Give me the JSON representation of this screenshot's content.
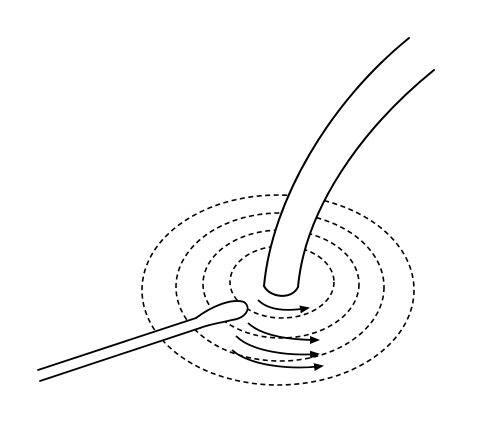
{
  "figure": {
    "subject": "tube-insertion-site-cleaning",
    "colors": {
      "stroke": "#000000",
      "background": "#ffffff"
    },
    "elements": {
      "tube": "drain-tube",
      "swab": "cotton-swab",
      "rings": "concentric-cleaning-rings",
      "arrows": "circular-motion-arrows"
    },
    "ring_count": 4,
    "arrow_count": 4
  }
}
